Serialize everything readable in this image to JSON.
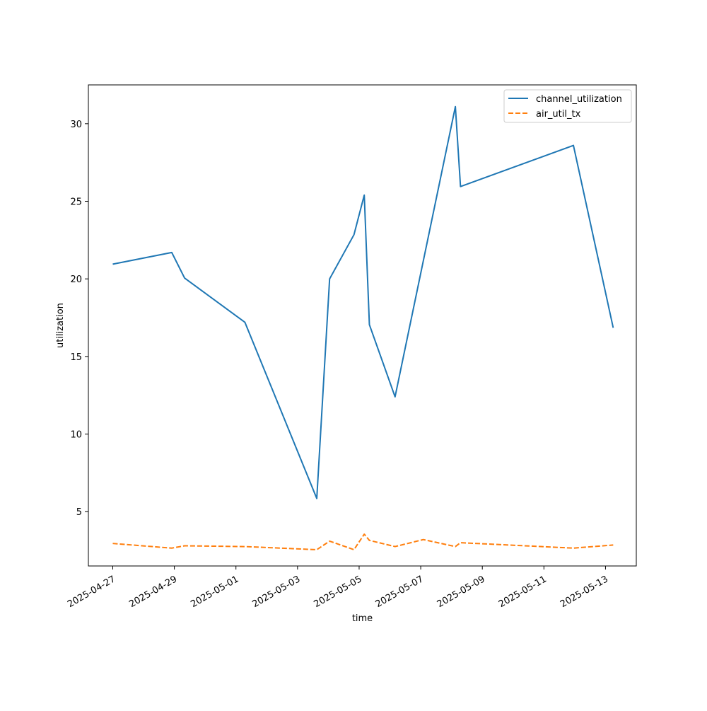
{
  "chart_data": {
    "type": "line",
    "title": "",
    "xlabel": "time",
    "ylabel": "utilization",
    "x_start": "2025-04-26T05:00",
    "x_end": "2025-05-14T00:00",
    "ylim": [
      1.5,
      32.5
    ],
    "xticks": [
      "2025-04-27",
      "2025-04-29",
      "2025-05-01",
      "2025-05-03",
      "2025-05-05",
      "2025-05-07",
      "2025-05-09",
      "2025-05-11",
      "2025-05-13"
    ],
    "yticks": [
      5,
      10,
      15,
      20,
      25,
      30
    ],
    "grid": false,
    "legend_position": "upper right",
    "series": [
      {
        "name": "channel_utilization",
        "color": "#1f77b4",
        "dash": "solid",
        "points": [
          {
            "x": "2025-04-27T00:00",
            "y": 20.95
          },
          {
            "x": "2025-04-28T22:00",
            "y": 21.7
          },
          {
            "x": "2025-04-29T08:00",
            "y": 20.05
          },
          {
            "x": "2025-05-01T07:00",
            "y": 17.2
          },
          {
            "x": "2025-05-03T15:00",
            "y": 5.85
          },
          {
            "x": "2025-05-04T01:00",
            "y": 20.0
          },
          {
            "x": "2025-05-04T20:00",
            "y": 22.85
          },
          {
            "x": "2025-05-05T04:00",
            "y": 25.4
          },
          {
            "x": "2025-05-05T08:00",
            "y": 17.05
          },
          {
            "x": "2025-05-06T04:00",
            "y": 12.4
          },
          {
            "x": "2025-05-08T03:00",
            "y": 31.1
          },
          {
            "x": "2025-05-08T07:00",
            "y": 25.95
          },
          {
            "x": "2025-05-11T23:00",
            "y": 28.6
          },
          {
            "x": "2025-05-13T06:00",
            "y": 16.85
          }
        ]
      },
      {
        "name": "air_util_tx",
        "color": "#ff7f0e",
        "dash": "dashed",
        "points": [
          {
            "x": "2025-04-27T00:00",
            "y": 2.95
          },
          {
            "x": "2025-04-28T22:00",
            "y": 2.65
          },
          {
            "x": "2025-04-29T08:00",
            "y": 2.8
          },
          {
            "x": "2025-05-01T07:00",
            "y": 2.75
          },
          {
            "x": "2025-05-03T15:00",
            "y": 2.55
          },
          {
            "x": "2025-05-04T01:00",
            "y": 3.1
          },
          {
            "x": "2025-05-04T20:00",
            "y": 2.55
          },
          {
            "x": "2025-05-05T04:00",
            "y": 3.55
          },
          {
            "x": "2025-05-05T08:00",
            "y": 3.15
          },
          {
            "x": "2025-05-06T04:00",
            "y": 2.75
          },
          {
            "x": "2025-05-07T02:00",
            "y": 3.2
          },
          {
            "x": "2025-05-08T03:00",
            "y": 2.75
          },
          {
            "x": "2025-05-08T07:00",
            "y": 3.0
          },
          {
            "x": "2025-05-11T23:00",
            "y": 2.65
          },
          {
            "x": "2025-05-13T06:00",
            "y": 2.85
          }
        ]
      }
    ]
  }
}
